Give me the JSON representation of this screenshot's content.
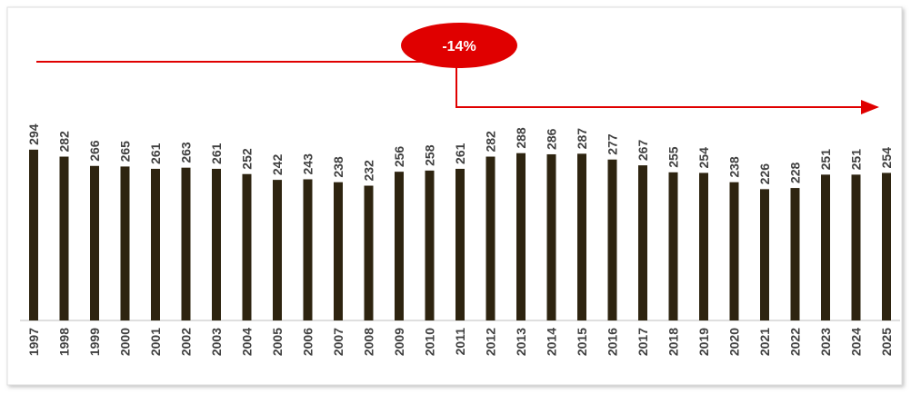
{
  "chart_data": {
    "type": "bar",
    "categories": [
      "1997",
      "1998",
      "1999",
      "2000",
      "2001",
      "2002",
      "2003",
      "2004",
      "2005",
      "2006",
      "2007",
      "2008",
      "2009",
      "2010",
      "2011",
      "2012",
      "2013",
      "2014",
      "2015",
      "2016",
      "2017",
      "2018",
      "2019",
      "2020",
      "2021",
      "2022",
      "2023",
      "2024",
      "2025"
    ],
    "values": [
      294,
      282,
      266,
      265,
      261,
      263,
      261,
      252,
      242,
      243,
      238,
      232,
      256,
      258,
      261,
      282,
      288,
      286,
      287,
      277,
      267,
      255,
      254,
      238,
      226,
      228,
      251,
      251,
      254
    ],
    "color": "#2e2410",
    "annotation": "-14%"
  }
}
